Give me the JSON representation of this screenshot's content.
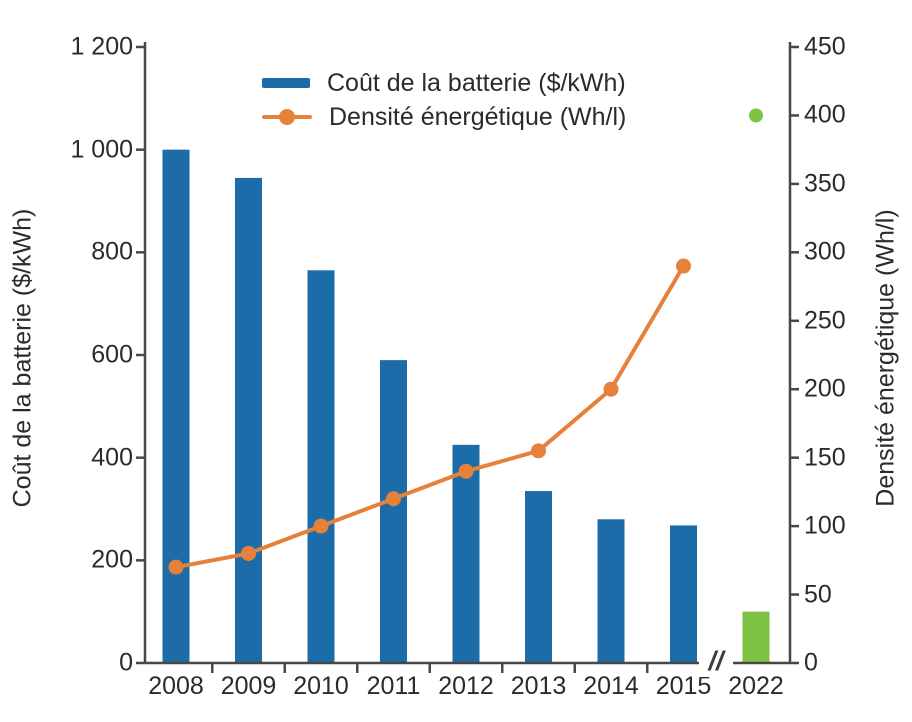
{
  "colors": {
    "cost_bar": "#1b6ca8",
    "density_line": "#e6813a",
    "target_green": "#7dc242",
    "axis": "#474747",
    "text": "#2b2b2b"
  },
  "legend": {
    "items": [
      {
        "label": "Coût de la batterie ($/kWh)",
        "swatch": "bar"
      },
      {
        "label": "Densité énergétique (Wh/l)",
        "swatch": "line-dot"
      }
    ]
  },
  "chart_data": {
    "type": "bar+line",
    "categories": [
      "2008",
      "2009",
      "2010",
      "2011",
      "2012",
      "2013",
      "2014",
      "2015"
    ],
    "series": [
      {
        "name": "Coût de la batterie ($/kWh)",
        "type": "bar",
        "axis": "left",
        "values": [
          1000,
          945,
          765,
          590,
          425,
          335,
          280,
          268
        ]
      },
      {
        "name": "Densité énergétique (Wh/l)",
        "type": "line",
        "axis": "right",
        "values": [
          70,
          80,
          100,
          120,
          140,
          155,
          200,
          290
        ]
      }
    ],
    "target_2022": {
      "category": "2022",
      "cost_bar": 100,
      "density_point": 400
    },
    "x_axis_break_symbol": "//",
    "left_axis": {
      "label": "Coût de la batterie ($/kWh)",
      "min": 0,
      "max": 1200,
      "step": 200,
      "tick_values": [
        0,
        200,
        400,
        600,
        800,
        1000,
        1200
      ],
      "tick_labels": [
        "0",
        "200",
        "400",
        "600",
        "800",
        "1 000",
        "1 200"
      ]
    },
    "right_axis": {
      "label": "Densité énergétique (Wh/l)",
      "min": 0,
      "max": 450,
      "step": 50,
      "tick_values": [
        0,
        50,
        100,
        150,
        200,
        250,
        300,
        350,
        400,
        450
      ],
      "tick_labels": [
        "0",
        "50",
        "100",
        "150",
        "200",
        "250",
        "300",
        "350",
        "400",
        "450"
      ]
    },
    "grid": false,
    "legend_position": "top-center"
  }
}
